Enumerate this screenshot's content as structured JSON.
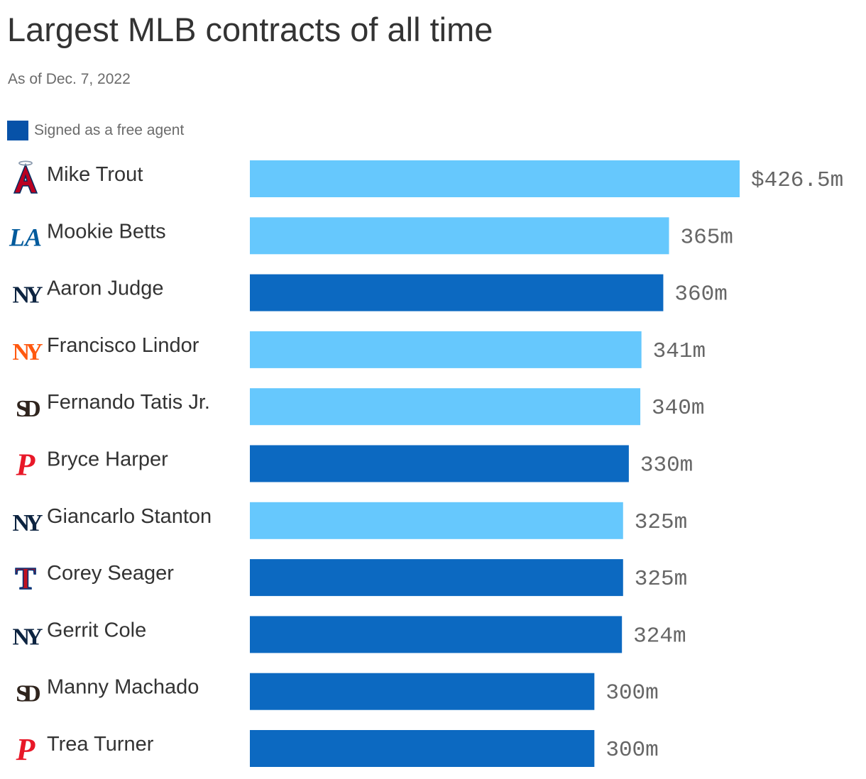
{
  "title": "Largest MLB contracts of all time",
  "subtitle": "As of Dec. 7, 2022",
  "legend": {
    "label": "Signed as a free agent",
    "color": "#0752a8"
  },
  "colors": {
    "free_agent": "#0c69c1",
    "extension": "#66c8fd"
  },
  "chart_data": {
    "type": "bar",
    "orientation": "horizontal",
    "unit": "$ millions",
    "categories": [
      "Mike Trout",
      "Mookie Betts",
      "Aaron Judge",
      "Francisco Lindor",
      "Fernando Tatis Jr.",
      "Bryce Harper",
      "Giancarlo Stanton",
      "Corey Seager",
      "Gerrit Cole",
      "Manny Machado",
      "Trea Turner"
    ],
    "values": [
      426.5,
      365,
      360,
      341,
      340,
      330,
      325,
      325,
      324,
      300,
      300
    ],
    "value_labels": [
      "$426.5m",
      "365m",
      "360m",
      "341m",
      "340m",
      "330m",
      "325m",
      "325m",
      "324m",
      "300m",
      "300m"
    ],
    "free_agent": [
      false,
      false,
      true,
      false,
      false,
      true,
      false,
      true,
      true,
      true,
      true
    ],
    "team_icons": [
      "angels-icon",
      "dodgers-icon",
      "yankees-icon",
      "mets-icon",
      "padres-icon",
      "phillies-icon",
      "yankees-icon",
      "rangers-icon",
      "yankees-icon",
      "padres-icon",
      "phillies-icon"
    ],
    "xlim": [
      0,
      426.5
    ],
    "grid": false,
    "legend_position": "top-left"
  }
}
